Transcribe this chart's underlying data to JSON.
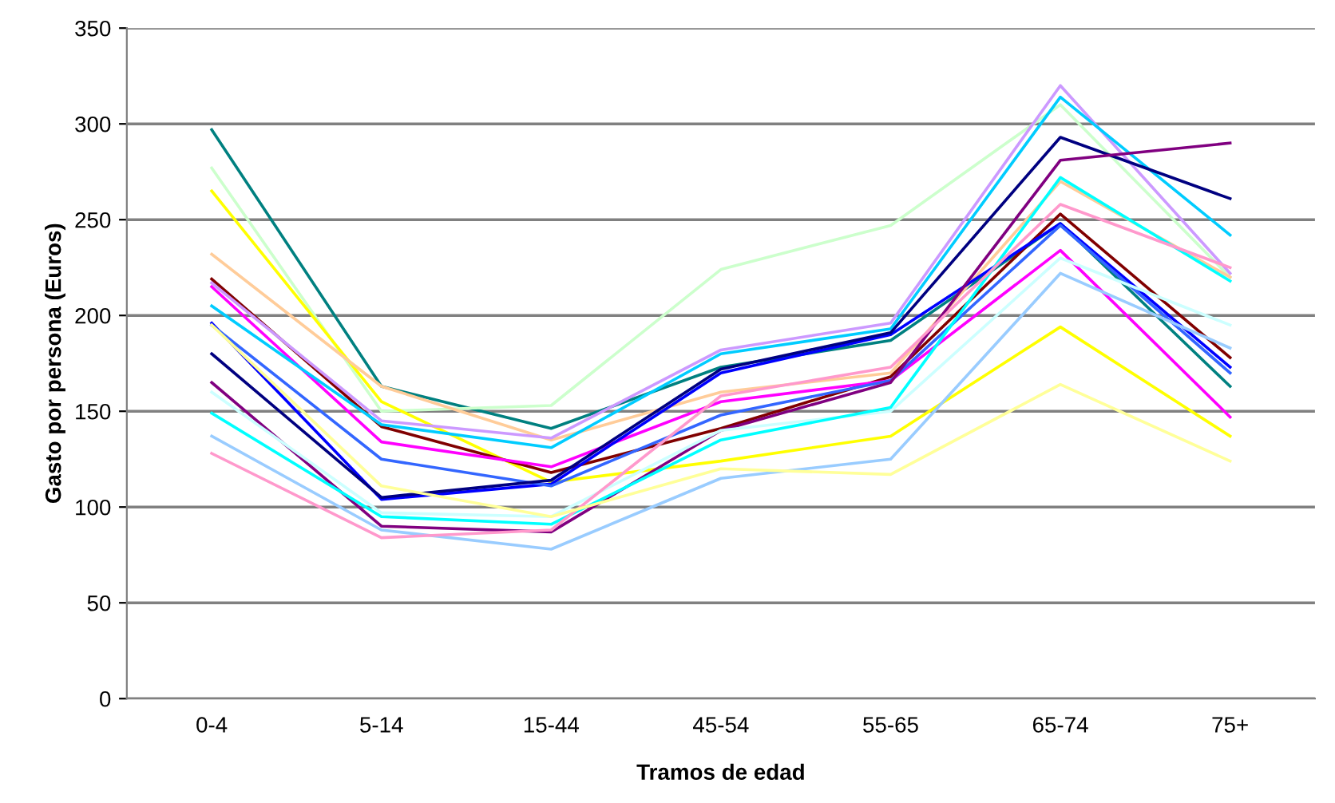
{
  "chart_data": {
    "type": "line",
    "xlabel": "Tramos de edad",
    "ylabel": "Gasto por persona (Euros)",
    "categories": [
      "0-4",
      "5-14",
      "15-44",
      "45-54",
      "55-65",
      "65-74",
      "75+"
    ],
    "ylim": [
      0,
      350
    ],
    "yticks": [
      0,
      50,
      100,
      150,
      200,
      250,
      300,
      350
    ],
    "grid": "y",
    "marker": "none",
    "line_style": "solid",
    "series": [
      {
        "color": "#008080",
        "values": [
          297,
          163,
          141,
          173,
          187,
          248,
          163
        ]
      },
      {
        "color": "#ccffcc",
        "values": [
          277,
          150,
          153,
          224,
          247,
          310,
          220
        ]
      },
      {
        "color": "#ffff00",
        "values": [
          265,
          155,
          113,
          124,
          137,
          194,
          137
        ]
      },
      {
        "color": "#ffcc99",
        "values": [
          232,
          163,
          135,
          160,
          170,
          270,
          220
        ]
      },
      {
        "color": "#800000",
        "values": [
          219,
          142,
          118,
          141,
          168,
          253,
          178
        ]
      },
      {
        "color": "#cc99ff",
        "values": [
          217,
          145,
          136,
          182,
          196,
          320,
          222
        ]
      },
      {
        "color": "#ff00ff",
        "values": [
          215,
          134,
          121,
          155,
          166,
          234,
          147
        ]
      },
      {
        "color": "#00ccff",
        "values": [
          205,
          143,
          131,
          180,
          193,
          314,
          242
        ]
      },
      {
        "color": "#0000ff",
        "values": [
          196,
          104,
          112,
          170,
          190,
          248,
          173
        ]
      },
      {
        "color": "#3366ff",
        "values": [
          195,
          125,
          111,
          148,
          166,
          247,
          170
        ]
      },
      {
        "color": "#000080",
        "values": [
          180,
          105,
          114,
          172,
          191,
          293,
          261
        ]
      },
      {
        "color": "#800080",
        "values": [
          165,
          90,
          87,
          140,
          165,
          281,
          290
        ]
      },
      {
        "color": "#ccffff",
        "values": [
          160,
          97,
          95,
          140,
          150,
          230,
          195
        ]
      },
      {
        "color": "#00ffff",
        "values": [
          149,
          95,
          91,
          135,
          152,
          272,
          218
        ]
      },
      {
        "color": "#99ccff",
        "values": [
          137,
          88,
          78,
          115,
          125,
          222,
          183
        ]
      },
      {
        "color": "#ff99cc",
        "values": [
          128,
          84,
          88,
          158,
          173,
          258,
          225
        ]
      },
      {
        "color": "#ffff99",
        "values": [
          195,
          111,
          95,
          120,
          117,
          164,
          124
        ]
      }
    ]
  }
}
